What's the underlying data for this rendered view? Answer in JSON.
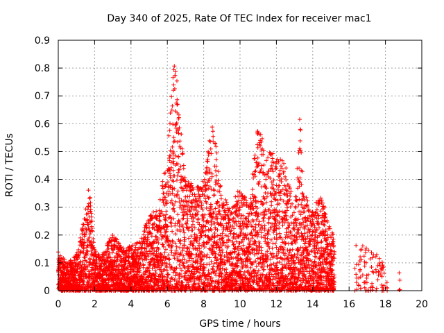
{
  "chart_data": {
    "type": "scatter",
    "title": "Day 340 of 2025, Rate Of TEC Index for receiver mac1",
    "xlabel": "GPS time / hours",
    "ylabel": "ROTI / TECUs",
    "xlim": [
      0,
      20
    ],
    "ylim": [
      0,
      0.9
    ],
    "xticks": [
      "0",
      "2",
      "4",
      "6",
      "8",
      "10",
      "12",
      "14",
      "16",
      "18",
      "20"
    ],
    "yticks": [
      "0",
      "0.1",
      "0.2",
      "0.3",
      "0.4",
      "0.5",
      "0.6",
      "0.7",
      "0.8",
      "0.9"
    ],
    "grid": true,
    "marker": "plus",
    "color": "#ff0000",
    "series": [
      {
        "envelope_hours": [
          0.0,
          0.5,
          1.0,
          1.5,
          1.7,
          2.0,
          2.5,
          3.0,
          3.5,
          4.0,
          4.5,
          5.0,
          5.5,
          6.0,
          6.4,
          7.0,
          7.5,
          8.0,
          8.5,
          9.0,
          9.5,
          10.0,
          10.5,
          11.0,
          11.5,
          12.0,
          12.5,
          13.0,
          13.3,
          13.5,
          14.0,
          14.5,
          15.0,
          16.5,
          17.0,
          17.5,
          18.0,
          18.8
        ],
        "envelope_roti": [
          0.14,
          0.1,
          0.13,
          0.3,
          0.38,
          0.15,
          0.14,
          0.22,
          0.16,
          0.16,
          0.18,
          0.28,
          0.3,
          0.5,
          0.85,
          0.4,
          0.38,
          0.4,
          0.62,
          0.35,
          0.3,
          0.38,
          0.3,
          0.62,
          0.5,
          0.5,
          0.45,
          0.3,
          0.65,
          0.35,
          0.3,
          0.35,
          0.21,
          0.18,
          0.16,
          0.15,
          0.08,
          0.07
        ],
        "coverage_gaps_hours": [
          [
            15.2,
            16.3
          ],
          [
            18.1,
            18.7
          ]
        ]
      }
    ]
  }
}
